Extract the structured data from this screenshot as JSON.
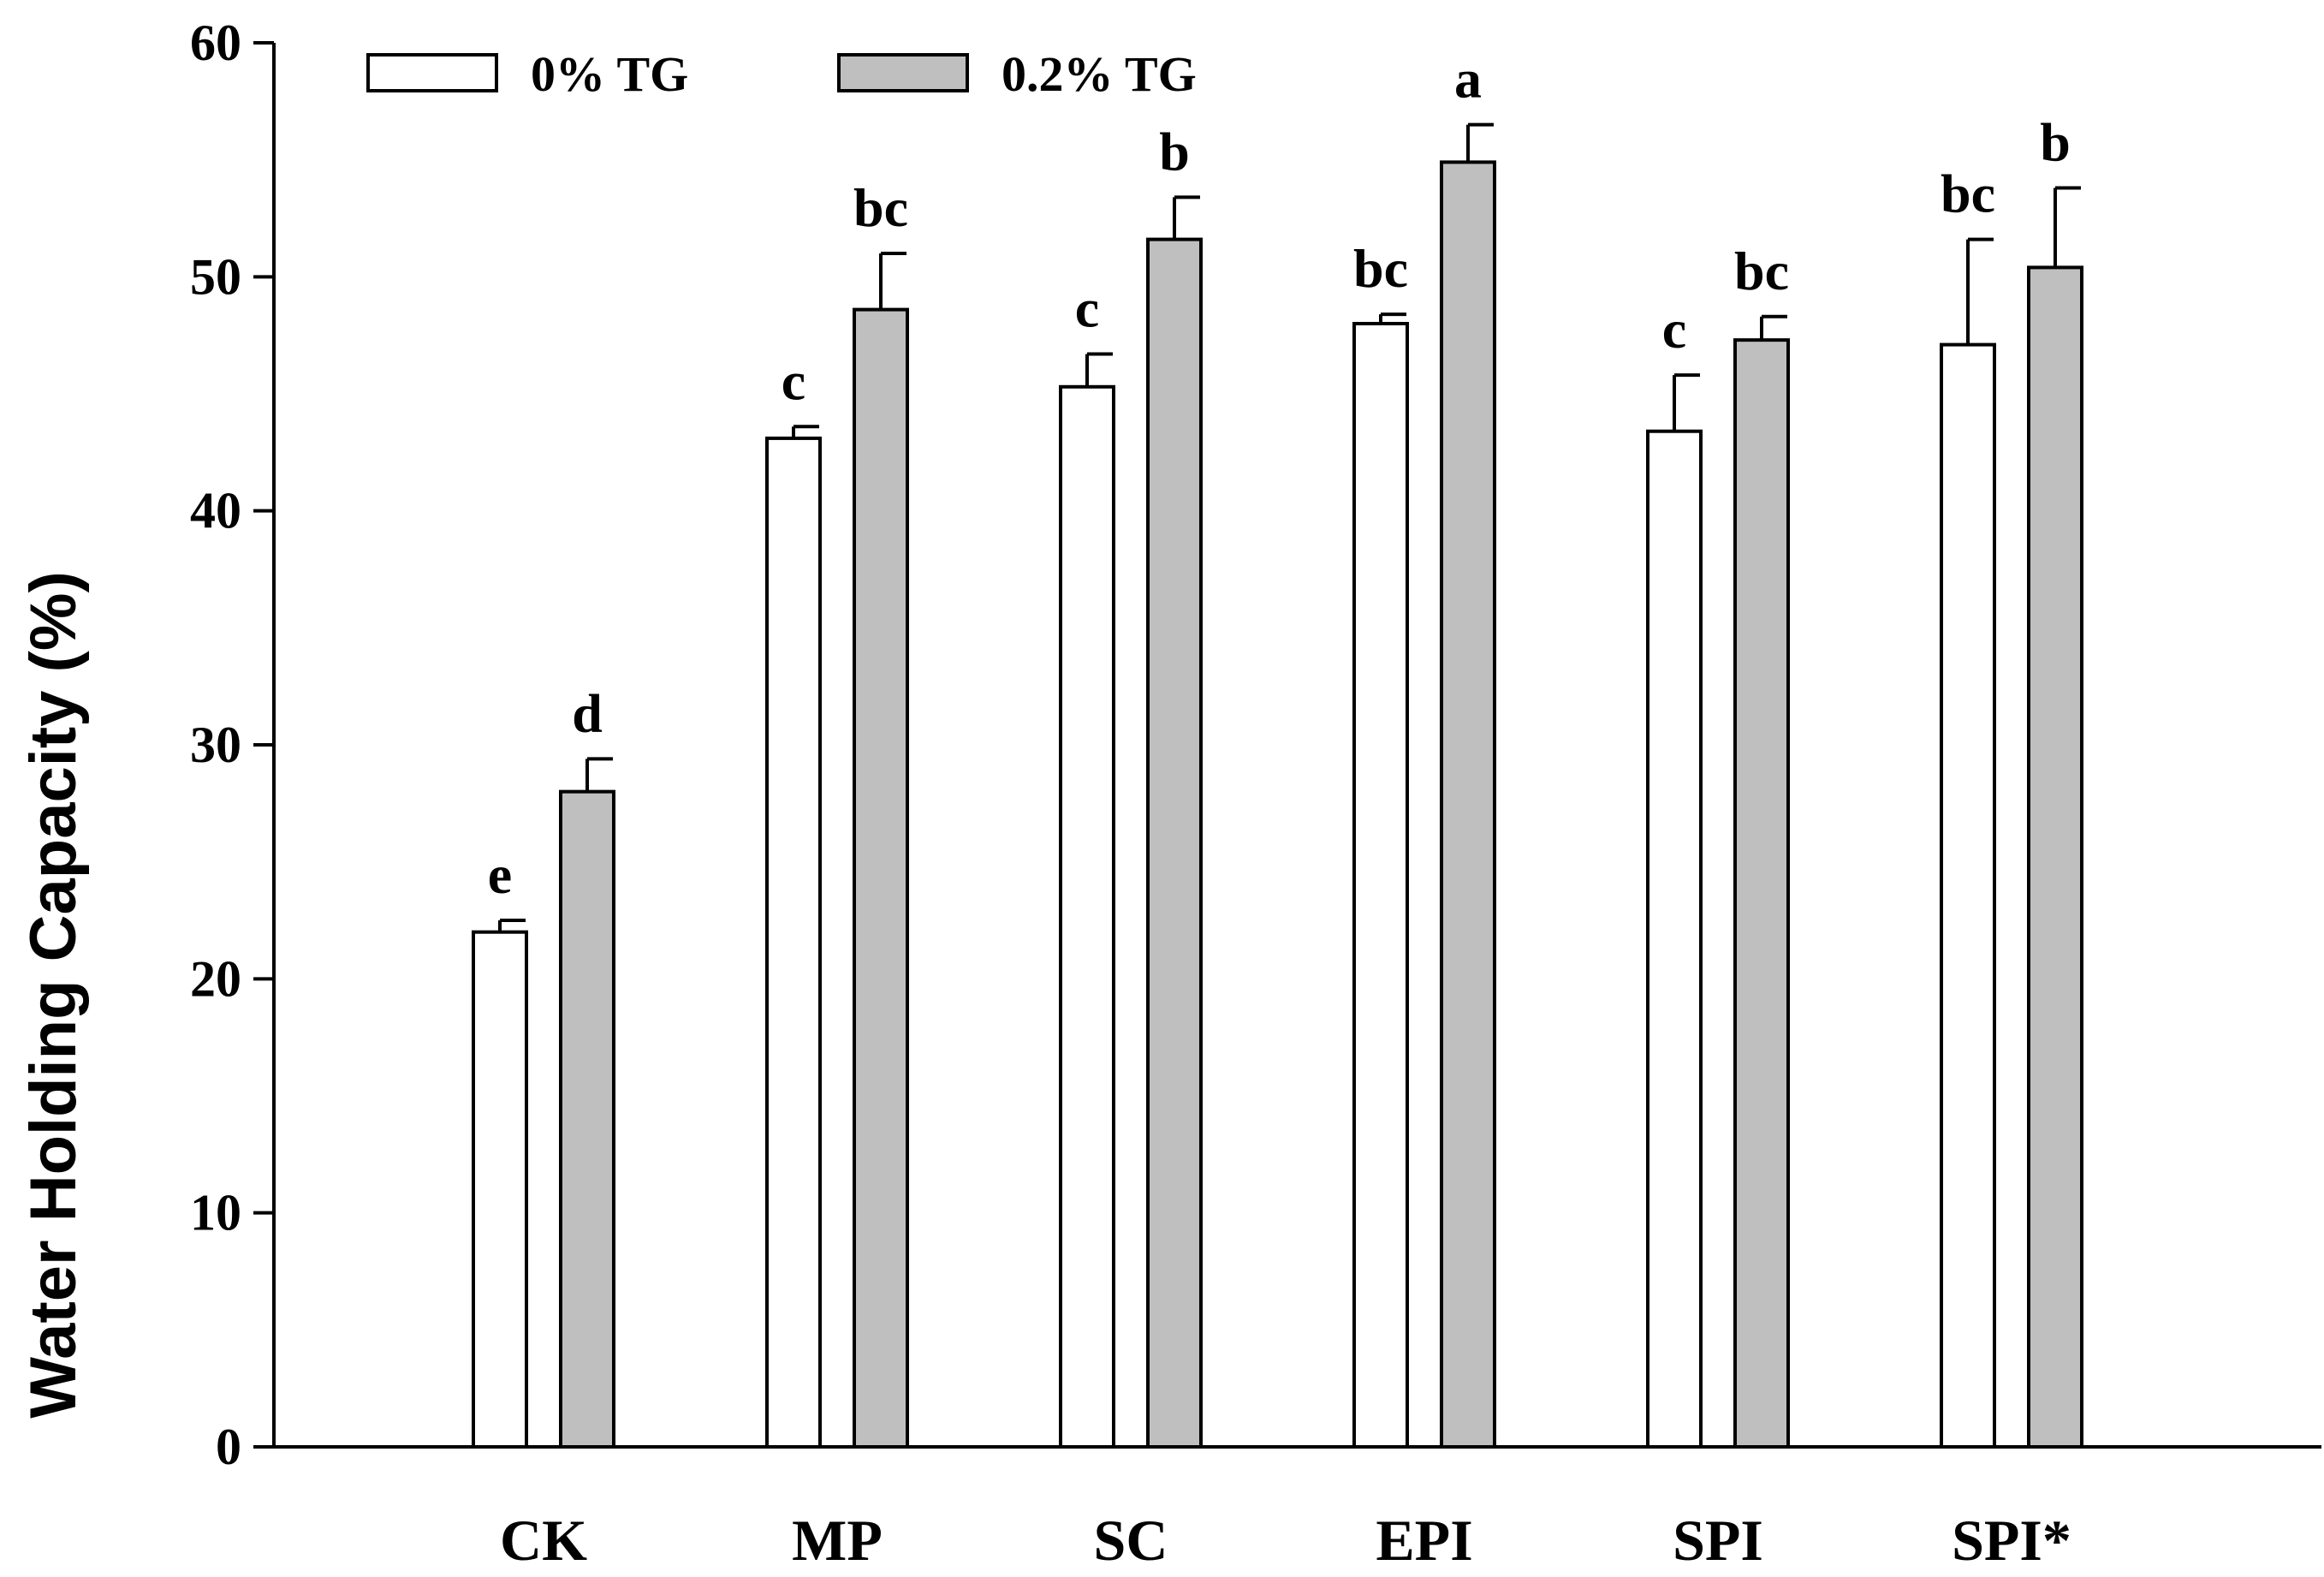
{
  "chart_data": {
    "type": "bar",
    "title": "",
    "xlabel": "",
    "ylabel": "Water Holding Capacity (%)",
    "ylim": [
      0,
      60
    ],
    "yticks": [
      0,
      10,
      20,
      30,
      40,
      50,
      60
    ],
    "grid": false,
    "legend_position": "top-left",
    "categories": [
      "CK",
      "MP",
      "SC",
      "EPI",
      "SPI",
      "SPI*"
    ],
    "series": [
      {
        "name": "0% TG",
        "color": "#ffffff",
        "values": [
          22.0,
          43.1,
          45.3,
          48.0,
          43.4,
          47.1
        ],
        "errors": [
          0.5,
          0.5,
          1.4,
          0.4,
          2.4,
          4.5
        ],
        "labels": [
          "e",
          "c",
          "c",
          "bc",
          "c",
          "bc"
        ]
      },
      {
        "name": "0.2% TG",
        "color": "#bfbfbf",
        "values": [
          28.0,
          48.6,
          51.6,
          54.9,
          47.3,
          50.4
        ],
        "errors": [
          1.4,
          2.4,
          1.8,
          1.6,
          1.0,
          3.4
        ],
        "labels": [
          "d",
          "bc",
          "b",
          "a",
          "bc",
          "b"
        ]
      }
    ]
  }
}
